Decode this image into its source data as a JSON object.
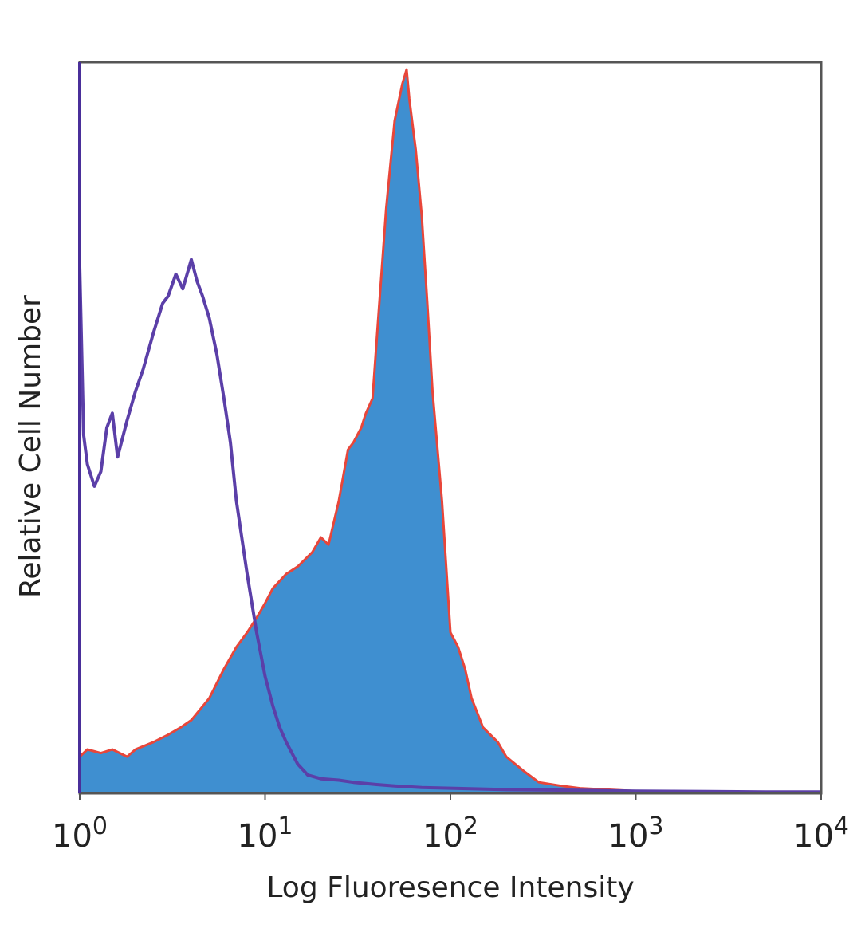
{
  "chart_data": {
    "type": "area",
    "xlabel": "Log Fluoresence Intensity",
    "ylabel": "Relative Cell Number",
    "xscale": "log",
    "xlim": [
      1,
      10000
    ],
    "ylim": [
      0,
      1
    ],
    "x_ticks": [
      {
        "base": "10",
        "exp": "0"
      },
      {
        "base": "10",
        "exp": "1"
      },
      {
        "base": "10",
        "exp": "2"
      },
      {
        "base": "10",
        "exp": "3"
      },
      {
        "base": "10",
        "exp": "4"
      }
    ],
    "grid": false,
    "legend": "none",
    "colors": {
      "stained_fill": "#3f8fd0",
      "stained_outline": "#e8463a",
      "control_line": "#5b3fa8",
      "frame": "#555555"
    },
    "series": [
      {
        "style": "filled",
        "x": [
          1,
          1.1,
          1.3,
          1.5,
          1.8,
          2.0,
          2.5,
          3.0,
          3.5,
          4.0,
          5.0,
          6.0,
          7.0,
          8.0,
          9.0,
          10,
          11,
          13,
          15,
          18,
          20,
          22,
          25,
          28,
          30,
          33,
          35,
          38,
          40,
          45,
          50,
          55,
          58,
          60,
          65,
          70,
          75,
          80,
          90,
          100,
          110,
          120,
          130,
          150,
          180,
          200,
          250,
          300,
          400,
          500,
          700,
          1000,
          2000,
          5000,
          10000
        ],
        "y": [
          0.05,
          0.06,
          0.055,
          0.06,
          0.05,
          0.06,
          0.07,
          0.08,
          0.09,
          0.1,
          0.13,
          0.17,
          0.2,
          0.22,
          0.24,
          0.26,
          0.28,
          0.3,
          0.31,
          0.33,
          0.35,
          0.34,
          0.4,
          0.47,
          0.48,
          0.5,
          0.52,
          0.54,
          0.62,
          0.8,
          0.92,
          0.97,
          0.99,
          0.95,
          0.88,
          0.79,
          0.67,
          0.55,
          0.4,
          0.22,
          0.2,
          0.17,
          0.13,
          0.09,
          0.07,
          0.05,
          0.03,
          0.015,
          0.01,
          0.007,
          0.005,
          0.003,
          0.002,
          0.002,
          0.002
        ]
      },
      {
        "style": "line",
        "x": [
          1,
          1.05,
          1.1,
          1.2,
          1.3,
          1.4,
          1.5,
          1.6,
          1.8,
          2.0,
          2.2,
          2.5,
          2.8,
          3.0,
          3.3,
          3.6,
          4.0,
          4.3,
          4.6,
          5.0,
          5.5,
          6.0,
          6.5,
          7.0,
          8.0,
          9.0,
          10,
          11,
          12,
          13,
          15,
          17,
          20,
          25,
          30,
          40,
          50,
          70,
          100,
          200,
          500,
          1000,
          5000,
          10000
        ],
        "y": [
          0.72,
          0.49,
          0.45,
          0.42,
          0.44,
          0.5,
          0.52,
          0.46,
          0.51,
          0.55,
          0.58,
          0.63,
          0.67,
          0.68,
          0.71,
          0.69,
          0.73,
          0.7,
          0.68,
          0.65,
          0.6,
          0.54,
          0.48,
          0.4,
          0.3,
          0.22,
          0.16,
          0.12,
          0.09,
          0.07,
          0.04,
          0.025,
          0.02,
          0.018,
          0.015,
          0.012,
          0.01,
          0.008,
          0.007,
          0.005,
          0.004,
          0.003,
          0.002,
          0.002
        ]
      }
    ]
  }
}
